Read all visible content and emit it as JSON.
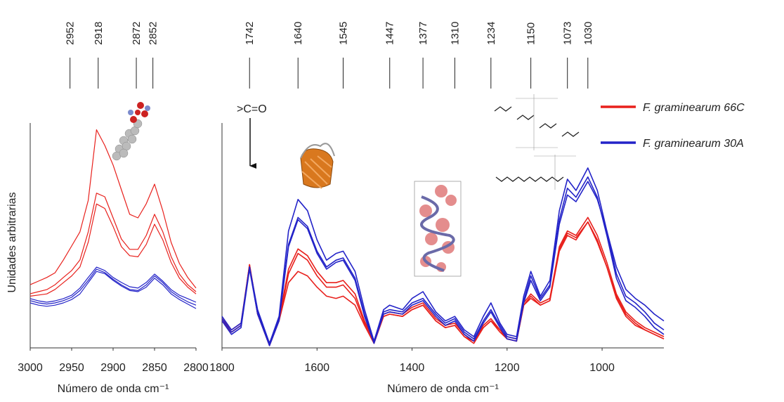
{
  "chart_data": [
    {
      "type": "line",
      "xlabel": "Número de onda cm⁻¹",
      "ylabel": "Unidades arbitrarias",
      "xlim": [
        3000,
        2800
      ],
      "xticks": [
        3000,
        2950,
        2900,
        2850,
        2800
      ],
      "ylim": [
        0,
        100
      ],
      "grid": false,
      "peaks": [
        2952,
        2918,
        2872,
        2852
      ],
      "x": [
        3000,
        2990,
        2980,
        2970,
        2960,
        2950,
        2940,
        2930,
        2920,
        2910,
        2900,
        2890,
        2880,
        2870,
        2860,
        2850,
        2840,
        2830,
        2820,
        2810,
        2800
      ],
      "series": [
        {
          "color": "#e8201c",
          "replicates": [
            [
              28.1,
              29.7,
              31.3,
              33.4,
              39.1,
              45.3,
              51.6,
              65.6,
              97,
              90,
              81.3,
              70.3,
              59.4,
              57.8,
              64.1,
              72.8,
              60.9,
              46.9,
              37.5,
              31.3,
              26.6
            ],
            [
              24.1,
              25.0,
              25.9,
              28.1,
              31.3,
              34.4,
              39.1,
              51.6,
              68.8,
              67.2,
              57.8,
              48.4,
              43.8,
              43.8,
              50.0,
              59.4,
              51.6,
              40.6,
              32.8,
              28.1,
              25.0
            ],
            [
              23,
              23.5,
              24,
              26,
              29,
              32,
              36,
              47,
              64,
              62,
              54,
              45,
              41,
              40.5,
              46,
              55,
              48,
              38,
              31,
              27,
              24
            ]
          ]
        },
        {
          "color": "#2323c8",
          "replicates": [
            [
              21.9,
              20.9,
              20.3,
              20.9,
              21.9,
              23.4,
              26.6,
              31.3,
              35.9,
              34.4,
              31.3,
              29.1,
              27.2,
              26.6,
              29.1,
              32.8,
              29.7,
              25.9,
              23.4,
              21.9,
              20.3
            ],
            [
              21,
              20,
              19.5,
              20,
              21,
              22.5,
              25.5,
              30,
              35,
              33.5,
              30.5,
              28,
              26,
              25.5,
              28,
              32,
              29,
              25,
              22.5,
              20.5,
              19
            ],
            [
              20,
              19,
              18.5,
              19,
              20,
              21.5,
              24,
              29,
              34,
              33,
              30,
              27.5,
              25.5,
              25,
              27,
              31,
              28,
              24,
              21.5,
              19.5,
              17.5
            ]
          ]
        }
      ]
    },
    {
      "type": "line",
      "xlabel": "Número de onda cm⁻¹",
      "xlim": [
        1800,
        870
      ],
      "xticks": [
        1800,
        1600,
        1400,
        1200,
        1000
      ],
      "ylim": [
        0,
        100
      ],
      "grid": false,
      "legend": "upper right",
      "annotation": ">C=O",
      "peaks": [
        1742,
        1640,
        1545,
        1447,
        1377,
        1310,
        1234,
        1150,
        1073,
        1030
      ],
      "x": [
        1800,
        1780,
        1760,
        1742,
        1725,
        1700,
        1680,
        1660,
        1640,
        1620,
        1600,
        1580,
        1560,
        1545,
        1520,
        1500,
        1480,
        1460,
        1447,
        1420,
        1400,
        1377,
        1350,
        1330,
        1310,
        1290,
        1270,
        1250,
        1234,
        1215,
        1200,
        1180,
        1165,
        1150,
        1130,
        1110,
        1090,
        1073,
        1055,
        1030,
        1010,
        990,
        970,
        950,
        930,
        910,
        890,
        870
      ],
      "series": [
        {
          "name": "F. graminearum 66C",
          "color": "#e8201c",
          "replicates": [
            [
              13,
              8,
              11,
              37,
              16,
              2,
              13,
              35,
              44,
              41,
              34,
              29,
              29,
              30,
              24,
              12,
              3,
              15,
              16,
              15,
              18,
              20,
              13,
              10,
              11,
              6,
              3,
              10,
              13,
              8,
              5,
              4,
              20,
              24,
              20,
              22,
              45,
              52,
              50,
              58,
              50,
              38,
              24,
              16,
              12,
              9,
              7,
              5
            ],
            [
              12,
              7,
              10,
              37,
              15,
              1,
              12,
              29,
              34,
              32,
              27,
              23,
              22,
              23,
              19,
              10,
              2,
              14,
              15,
              14,
              17,
              19,
              12,
              9,
              10,
              5,
              2,
              9,
              12,
              7,
              4,
              3,
              19,
              23,
              19,
              21,
              44,
              51,
              49,
              56,
              48,
              36,
              22,
              14,
              10,
              8,
              6,
              4
            ],
            [
              12,
              7,
              10,
              36,
              15,
              2,
              12,
              33,
              42,
              39,
              32,
              27,
              27,
              28,
              22,
              11,
              3,
              14,
              15,
              14,
              17,
              19,
              12,
              9,
              10,
              5,
              3,
              9,
              12,
              8,
              4,
              3,
              19,
              22,
              19,
              21,
              43,
              50,
              48,
              56,
              47,
              36,
              23,
              15,
              11,
              8,
              6,
              4
            ]
          ]
        },
        {
          "name": "F. graminearum 30A",
          "color": "#2323c8",
          "replicates": [
            [
              14,
              8,
              11,
              36,
              17,
              2,
              14,
              52,
              66,
              61,
              48,
              39,
              42,
              43,
              34,
              17,
              3,
              17,
              19,
              17,
              22,
              25,
              16,
              12,
              14,
              8,
              5,
              14,
              20,
              11,
              6,
              5,
              23,
              34,
              23,
              30,
              61,
              75,
              70,
              80,
              70,
              52,
              33,
              23,
              20,
              16,
              11,
              8
            ],
            [
              13,
              7,
              10,
              36,
              16,
              2,
              13,
              46,
              58,
              54,
              43,
              36,
              39,
              40,
              31,
              15,
              3,
              16,
              17,
              16,
              20,
              22,
              15,
              11,
              13,
              7,
              4,
              12,
              17,
              10,
              5,
              4,
              21,
              32,
              22,
              28,
              57,
              71,
              67,
              76,
              67,
              50,
              31,
              21,
              18,
              14,
              9,
              6
            ],
            [
              12,
              6,
              9,
              35,
              15,
              1,
              12,
              45,
              57,
              53,
              42,
              35,
              38,
              39,
              30,
              14,
              2,
              15,
              16,
              15,
              19,
              21,
              14,
              10,
              12,
              6,
              3,
              11,
              16,
              9,
              4,
              3,
              20,
              30,
              21,
              27,
              55,
              68,
              65,
              74,
              66,
              52,
              36,
              26,
              22,
              19,
              15,
              12
            ]
          ]
        }
      ]
    }
  ]
}
